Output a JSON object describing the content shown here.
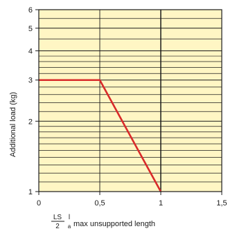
{
  "chart_data": {
    "type": "line",
    "title": "",
    "ylabel": "Additional load (kg)",
    "xlabel": {
      "fraction_numerator": "LS",
      "fraction_denominator": "2",
      "fraction_prefix": "l",
      "fraction_prefix_small": "a",
      "text": "max unsupported length"
    },
    "x_scale": "linear",
    "y_scale": "log",
    "xlim": [
      0,
      1.5
    ],
    "ylim": [
      1,
      6
    ],
    "x_ticks": [
      {
        "value": 0,
        "label": "0"
      },
      {
        "value": 0.5,
        "label": "0,5"
      },
      {
        "value": 1,
        "label": "1"
      },
      {
        "value": 1.5,
        "label": "1,5"
      }
    ],
    "y_ticks": [
      {
        "value": 1,
        "label": "1"
      },
      {
        "value": 2,
        "label": "2"
      },
      {
        "value": 3,
        "label": "3"
      },
      {
        "value": 4,
        "label": "4"
      },
      {
        "value": 5,
        "label": "5"
      },
      {
        "value": 6,
        "label": "6"
      }
    ],
    "minor_y_gridlines": [
      1.1,
      1.2,
      1.3,
      1.4,
      1.5,
      1.6,
      1.7,
      1.8,
      1.9,
      2.2,
      2.4,
      2.6,
      2.8,
      3.2,
      3.4,
      3.6,
      3.8,
      4.5,
      5.5
    ],
    "grid": true,
    "colors": {
      "background": "#fff6c4",
      "line": "#d82a2a",
      "grid": "#1a1a1a",
      "major_vertical": "#1a1a1a"
    },
    "series": [
      {
        "points": [
          {
            "x": 0,
            "y": 3
          },
          {
            "x": 0.5,
            "y": 3
          },
          {
            "x": 1,
            "y": 1
          }
        ]
      }
    ]
  }
}
